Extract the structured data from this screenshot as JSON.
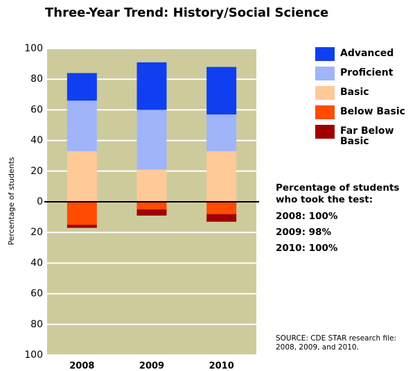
{
  "chart_data": {
    "type": "bar",
    "stacked": true,
    "title": "Three-Year Trend: History/Social Science",
    "y_label": "Percentage of students",
    "categories": [
      "2008",
      "2009",
      "2010"
    ],
    "series": [
      {
        "name": "Advanced",
        "color": "#0f3ff0",
        "values": [
          18,
          31,
          31
        ]
      },
      {
        "name": "Proficient",
        "color": "#a0b4fa",
        "values": [
          33,
          39,
          24
        ]
      },
      {
        "name": "Basic",
        "color": "#ffc998",
        "values": [
          33,
          21,
          33
        ]
      },
      {
        "name": "Below Basic",
        "color": "#ff4c00",
        "values": [
          -15,
          -5,
          -8
        ]
      },
      {
        "name": "Far Below Basic",
        "color": "#a00000",
        "values": [
          -2,
          -4,
          -5
        ]
      }
    ],
    "ylim": [
      -100,
      100
    ],
    "yticks": [
      {
        "value": -100,
        "label": "100"
      },
      {
        "value": -80,
        "label": "80"
      },
      {
        "value": -60,
        "label": "60"
      },
      {
        "value": -40,
        "label": "40"
      },
      {
        "value": -20,
        "label": "20"
      },
      0,
      20,
      40,
      60,
      80,
      100
    ],
    "grid": true,
    "legend": "right",
    "note_heading": "Percentage of students who took the test:",
    "notes": [
      "2008: 100%",
      "2009: 98%",
      "2010: 100%"
    ],
    "source": "SOURCE: CDE STAR research file: 2008, 2009, and 2010."
  }
}
